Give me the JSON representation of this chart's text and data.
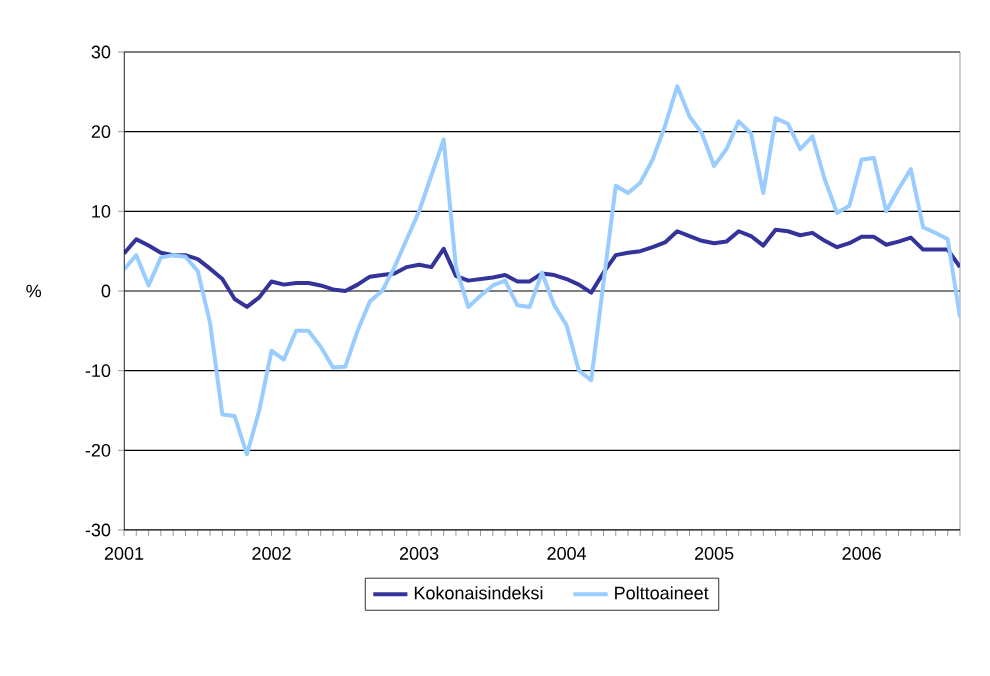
{
  "chart_data": {
    "type": "line",
    "ylabel": "%",
    "categories": [
      "2001",
      null,
      null,
      null,
      null,
      null,
      null,
      null,
      null,
      null,
      null,
      null,
      "2002",
      null,
      null,
      null,
      null,
      null,
      null,
      null,
      null,
      null,
      null,
      null,
      "2003",
      null,
      null,
      null,
      null,
      null,
      null,
      null,
      null,
      null,
      null,
      null,
      "2004",
      null,
      null,
      null,
      null,
      null,
      null,
      null,
      null,
      null,
      null,
      null,
      "2005",
      null,
      null,
      null,
      null,
      null,
      null,
      null,
      null,
      null,
      null,
      null,
      "2006",
      null,
      null,
      null,
      null,
      null,
      null,
      null,
      null
    ],
    "series": [
      {
        "name": "Kokonaisindeksi",
        "color": "#333399",
        "values": [
          4.7,
          6.5,
          5.7,
          4.8,
          4.5,
          4.5,
          4,
          2.8,
          1.5,
          -1,
          -2,
          -0.8,
          1.2,
          0.8,
          1,
          1,
          0.7,
          0.2,
          0,
          0.8,
          1.8,
          2,
          2.2,
          3,
          3.3,
          3,
          5.3,
          1.9,
          1.3,
          1.5,
          1.7,
          2,
          1.2,
          1.2,
          2.2,
          2,
          1.5,
          0.8,
          -0.2,
          2.3,
          4.5,
          4.8,
          5,
          5.5,
          6.1,
          7.5,
          6.9,
          6.3,
          6,
          6.2,
          7.5,
          6.9,
          5.7,
          7.7,
          7.5,
          7,
          7.3,
          6.3,
          5.5,
          6,
          6.8,
          6.8,
          5.8,
          6.2,
          6.7,
          5.2,
          5.2,
          5.2,
          3
        ]
      },
      {
        "name": "Polttoaineet",
        "color": "#99ccff",
        "values": [
          2.7,
          4.5,
          0.7,
          4.2,
          4.5,
          4.3,
          2.5,
          -4,
          -15.5,
          -15.7,
          -20.5,
          -15,
          -7.5,
          -8.6,
          -5,
          -5,
          -7,
          -9.6,
          -9.5,
          -5,
          -1.3,
          0,
          3,
          6.5,
          10,
          14.5,
          19,
          3,
          -2,
          -0.6,
          0.7,
          1.3,
          -1.8,
          -2,
          2.3,
          -1.8,
          -4.3,
          -10,
          -11.2,
          1,
          13.2,
          12.3,
          13.6,
          16.5,
          20.7,
          25.7,
          21.9,
          19.8,
          15.7,
          17.8,
          21.3,
          19.8,
          12.3,
          21.7,
          21,
          17.8,
          19.4,
          14,
          9.8,
          10.7,
          16.5,
          16.7,
          10,
          12.8,
          15.3,
          8,
          7.3,
          6.5,
          -3.3
        ]
      }
    ],
    "ylim": [
      -30,
      30
    ],
    "yticks": [
      -30,
      -20,
      -10,
      0,
      10,
      20,
      30
    ],
    "grid": "y",
    "legend": "bottom",
    "marker": "none",
    "line_style": "solid"
  }
}
